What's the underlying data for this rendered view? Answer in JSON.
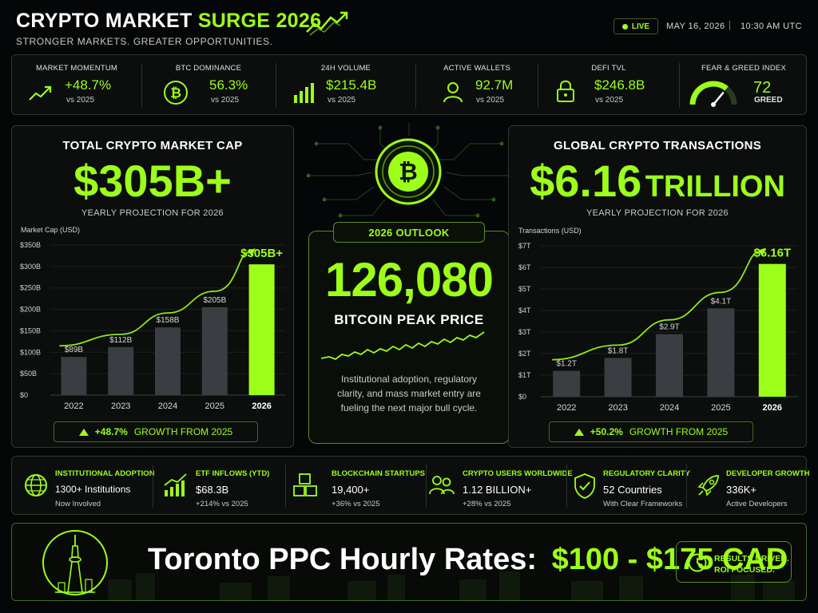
{
  "header": {
    "title_part1": "CRYPTO MARKET ",
    "title_part2": "SURGE 2026",
    "subtitle": "STRONGER MARKETS. GREATER OPPORTUNITIES.",
    "live_label": "LIVE",
    "date": "MAY 16, 2026",
    "time": "10:30 AM UTC"
  },
  "stats": [
    {
      "label": "MARKET MOMENTUM",
      "value": "+48.7%",
      "sub": "vs 2025",
      "icon": "trend-up-icon"
    },
    {
      "label": "BTC DOMINANCE",
      "value": "56.3%",
      "sub": "vs 2025",
      "icon": "bitcoin-icon"
    },
    {
      "label": "24H VOLUME",
      "value": "$215.4B",
      "sub": "vs 2025",
      "icon": "volume-bars-icon"
    },
    {
      "label": "ACTIVE WALLETS",
      "value": "92.7M",
      "sub": "vs 2025",
      "icon": "user-icon"
    },
    {
      "label": "DEFI TVL",
      "value": "$246.8B",
      "sub": "vs 2025",
      "icon": "lock-icon"
    },
    {
      "label": "FEAR & GREED INDEX",
      "value": "72",
      "sub": "GREED",
      "icon": "gauge-icon",
      "gauge_level": 72
    }
  ],
  "left_panel": {
    "title": "TOTAL CRYPTO MARKET CAP",
    "big_value": "$305B+",
    "subtitle": "YEARLY PROJECTION FOR 2026",
    "growth_value": "+48.7%",
    "growth_text": "GROWTH FROM 2025"
  },
  "right_panel": {
    "title": "GLOBAL CRYPTO TRANSACTIONS",
    "big_value_num": "$6.16",
    "big_value_word": "TRILLION",
    "subtitle": "YEARLY PROJECTION FOR 2026",
    "growth_value": "+50.2%",
    "growth_text": "GROWTH FROM 2025"
  },
  "outlook": {
    "tab": "2026 OUTLOOK",
    "value": "126,080",
    "label": "BITCOIN PEAK PRICE",
    "description": "Institutional adoption, regulatory clarity, and mass market entry are fueling the next major bull cycle."
  },
  "chart_data": [
    {
      "type": "bar",
      "ylabel": "Market Cap (USD)",
      "categories": [
        "2022",
        "2023",
        "2024",
        "2025",
        "2026"
      ],
      "values": [
        89,
        112,
        158,
        205,
        305
      ],
      "data_labels": [
        "$89B",
        "$112B",
        "$158B",
        "$205B",
        "$305B+"
      ],
      "ylim": [
        0,
        350
      ],
      "yticks": [
        "$0",
        "$50B",
        "$100B",
        "$150B",
        "$200B",
        "$250B",
        "$300B",
        "$350B"
      ],
      "highlight_color": "#9cff1a",
      "bar_color": "#3a3d42"
    },
    {
      "type": "bar",
      "ylabel": "Transactions (USD)",
      "categories": [
        "2022",
        "2023",
        "2024",
        "2025",
        "2026"
      ],
      "values": [
        1.2,
        1.8,
        2.9,
        4.1,
        6.16
      ],
      "data_labels": [
        "$1.2T",
        "$1.8T",
        "$2.9T",
        "$4.1T",
        "$6.16T"
      ],
      "ylim": [
        0,
        7
      ],
      "yticks": [
        "$0",
        "$1T",
        "$2T",
        "$3T",
        "$4T",
        "$5T",
        "$6T",
        "$7T"
      ],
      "highlight_color": "#9cff1a",
      "bar_color": "#3a3d42"
    }
  ],
  "bottom_stats": [
    {
      "label": "INSTITUTIONAL ADOPTION",
      "value": "1300+ Institutions",
      "sub": "Now Involved",
      "icon": "globe-icon"
    },
    {
      "label": "ETF INFLOWS (YTD)",
      "value": "$68.3B",
      "sub": "+214% vs 2025",
      "icon": "chart-up-icon"
    },
    {
      "label": "BLOCKCHAIN STARTUPS",
      "value": "19,400+",
      "sub": "+36% vs 2025",
      "icon": "blocks-icon"
    },
    {
      "label": "CRYPTO USERS WORLDWIDE",
      "value": "1.12 BILLION+",
      "sub": "+28% vs 2025",
      "icon": "users-icon"
    },
    {
      "label": "REGULATORY CLARITY",
      "value": "52 Countries",
      "sub": "With Clear Frameworks",
      "icon": "shield-check-icon"
    },
    {
      "label": "DEVELOPER GROWTH",
      "value": "336K+",
      "sub": "Active Developers",
      "icon": "rocket-icon"
    }
  ],
  "footer": {
    "text_white": "Toronto PPC Hourly Rates:",
    "text_green": "$100 - $175 CAD",
    "badge_line1": "RESULTS DRIVEN.",
    "badge_line2": "ROI FOCUSED."
  },
  "colors": {
    "accent": "#9cff1a",
    "background": "#050607",
    "bar": "#3a3d42"
  }
}
